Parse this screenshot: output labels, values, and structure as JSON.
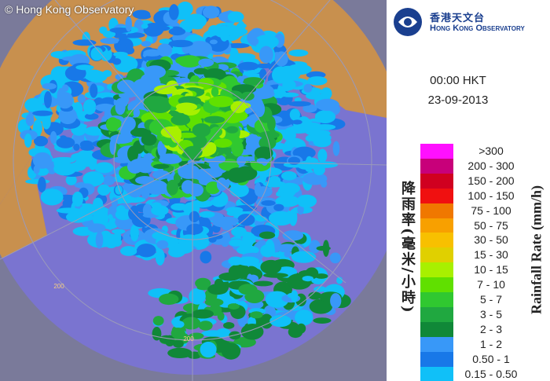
{
  "header": {
    "copyright": "© Hong Kong Observatory",
    "logo_chinese": "香港天文台",
    "logo_english": "Hong Kong Observatory"
  },
  "time": "00:00 HKT",
  "date": "23-09-2013",
  "map": {
    "range_labels": [
      "200",
      "200"
    ]
  },
  "legend": {
    "title_chinese": "降雨率(毫米/小時)",
    "title_english": "Rainfall Rate (mm/h)",
    "items": [
      {
        "label": ">300",
        "color": "#ff10ff"
      },
      {
        "label": "200 - 300",
        "color": "#c8007a"
      },
      {
        "label": "150 - 200",
        "color": "#d00020"
      },
      {
        "label": "100 - 150",
        "color": "#f01010"
      },
      {
        "label": "75 - 100",
        "color": "#f07800"
      },
      {
        "label": "50 - 75",
        "color": "#f8a000"
      },
      {
        "label": "30 - 50",
        "color": "#f8c000"
      },
      {
        "label": "15 - 30",
        "color": "#e0d000"
      },
      {
        "label": "10 - 15",
        "color": "#a8f000"
      },
      {
        "label": "7 - 10",
        "color": "#60e000"
      },
      {
        "label": "5 - 7",
        "color": "#30c830"
      },
      {
        "label": "3 - 5",
        "color": "#20a840"
      },
      {
        "label": "2 - 3",
        "color": "#108838"
      },
      {
        "label": "1 - 2",
        "color": "#3898f8"
      },
      {
        "label": "0.50 - 1",
        "color": "#1878e8"
      },
      {
        "label": "0.15 - 0.50",
        "color": "#10c0f8"
      }
    ]
  }
}
